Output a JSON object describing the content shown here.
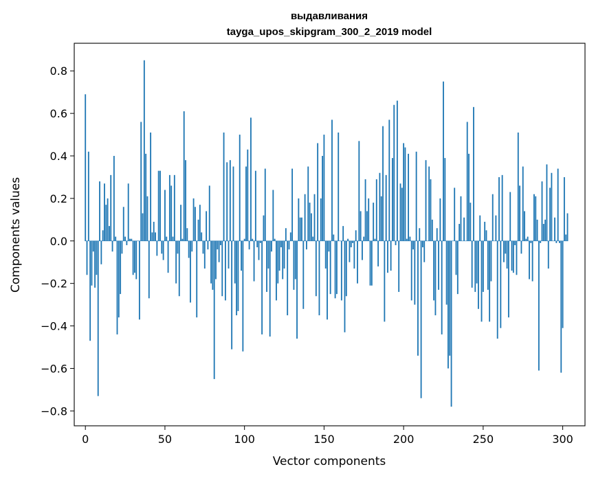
{
  "chart_data": {
    "type": "bar",
    "title": "выдавливания",
    "subtitle": "tayga_upos_skipgram_300_2_2019 model",
    "xlabel": "Vector components",
    "ylabel": "Components values",
    "xlim": [
      -7,
      314
    ],
    "ylim": [
      -0.87,
      0.93
    ],
    "xticks": [
      0,
      50,
      100,
      150,
      200,
      250,
      300
    ],
    "yticks": [
      -0.8,
      -0.6,
      -0.4,
      -0.2,
      0.0,
      0.2,
      0.4,
      0.6,
      0.8
    ],
    "ytick_labels": [
      "−0.8",
      "−0.6",
      "−0.4",
      "−0.2",
      "0.0",
      "0.2",
      "0.4",
      "0.6",
      "0.8"
    ],
    "series_color": "#1f77b4",
    "values": [
      0.69,
      -0.16,
      0.42,
      -0.47,
      -0.21,
      -0.05,
      -0.22,
      -0.16,
      -0.73,
      0.28,
      -0.11,
      0.05,
      0.27,
      0.17,
      0.2,
      0.07,
      0.31,
      -0.05,
      0.4,
      0.02,
      -0.44,
      -0.36,
      -0.25,
      -0.06,
      0.16,
      0.02,
      -0.02,
      0.27,
      0.01,
      0.01,
      -0.16,
      -0.15,
      -0.18,
      0.0,
      -0.37,
      0.56,
      0.13,
      0.85,
      0.41,
      0.21,
      -0.27,
      0.51,
      0.04,
      0.09,
      0.04,
      -0.07,
      0.33,
      0.33,
      -0.06,
      -0.09,
      0.24,
      0.02,
      -0.15,
      0.31,
      0.26,
      0.02,
      0.31,
      -0.2,
      -0.06,
      -0.26,
      0.17,
      0.01,
      0.61,
      0.38,
      0.06,
      -0.08,
      -0.29,
      -0.05,
      0.2,
      0.16,
      -0.36,
      0.1,
      0.17,
      0.04,
      -0.06,
      -0.13,
      0.14,
      -0.04,
      0.26,
      -0.2,
      -0.23,
      -0.65,
      -0.18,
      -0.04,
      -0.1,
      -0.02,
      -0.26,
      0.51,
      -0.28,
      0.37,
      -0.13,
      0.38,
      -0.51,
      0.35,
      -0.2,
      -0.35,
      -0.33,
      0.5,
      -0.14,
      -0.52,
      0.01,
      0.35,
      0.43,
      -0.04,
      0.58,
      0.01,
      -0.19,
      0.33,
      -0.03,
      -0.09,
      -0.01,
      -0.44,
      0.12,
      0.34,
      -0.24,
      -0.13,
      -0.45,
      -0.05,
      0.24,
      0.01,
      -0.28,
      -0.2,
      -0.14,
      -0.03,
      -0.18,
      -0.13,
      0.06,
      -0.35,
      -0.04,
      0.04,
      0.34,
      -0.23,
      -0.18,
      -0.46,
      0.2,
      0.11,
      0.11,
      -0.32,
      0.22,
      -0.04,
      0.35,
      0.18,
      0.13,
      0.02,
      0.22,
      -0.26,
      0.46,
      -0.35,
      0.2,
      0.4,
      0.5,
      -0.13,
      -0.37,
      -0.05,
      -0.25,
      0.57,
      0.03,
      -0.27,
      -0.25,
      0.51,
      0.0,
      -0.28,
      0.07,
      -0.43,
      -0.26,
      0.01,
      -0.1,
      -0.03,
      -0.01,
      -0.13,
      0.05,
      -0.2,
      0.47,
      0.14,
      -0.09,
      0.02,
      0.29,
      0.14,
      0.2,
      -0.21,
      -0.21,
      0.18,
      0.01,
      0.29,
      -0.12,
      0.32,
      0.21,
      0.54,
      -0.38,
      0.31,
      -0.15,
      0.57,
      -0.14,
      0.39,
      0.64,
      -0.02,
      0.66,
      -0.24,
      0.27,
      0.25,
      0.46,
      0.44,
      0.01,
      0.41,
      0.02,
      -0.28,
      -0.04,
      -0.3,
      0.42,
      -0.54,
      0.06,
      -0.74,
      -0.03,
      -0.1,
      0.38,
      0.0,
      0.35,
      0.29,
      0.1,
      -0.28,
      -0.35,
      0.06,
      -0.23,
      0.2,
      -0.44,
      0.75,
      0.39,
      -0.3,
      -0.6,
      -0.54,
      -0.78,
      0.0,
      0.25,
      -0.16,
      -0.25,
      0.08,
      0.21,
      0.0,
      0.11,
      0.0,
      0.56,
      0.41,
      0.18,
      -0.22,
      0.63,
      -0.24,
      -0.2,
      -0.32,
      0.12,
      -0.38,
      -0.24,
      0.09,
      0.05,
      -0.23,
      -0.38,
      -0.19,
      0.22,
      0.0,
      0.12,
      -0.46,
      0.3,
      -0.41,
      0.31,
      -0.1,
      -0.06,
      -0.13,
      -0.36,
      0.23,
      -0.14,
      -0.15,
      -0.02,
      -0.16,
      0.51,
      0.26,
      -0.06,
      0.35,
      0.14,
      0.01,
      0.02,
      -0.18,
      -0.01,
      -0.19,
      0.22,
      0.21,
      0.1,
      -0.61,
      -0.01,
      0.28,
      0.08,
      0.1,
      0.36,
      -0.13,
      0.25,
      0.32,
      0.0,
      0.11,
      -0.01,
      0.34,
      -0.01,
      -0.62,
      -0.41,
      0.3,
      0.03,
      0.13
    ]
  }
}
